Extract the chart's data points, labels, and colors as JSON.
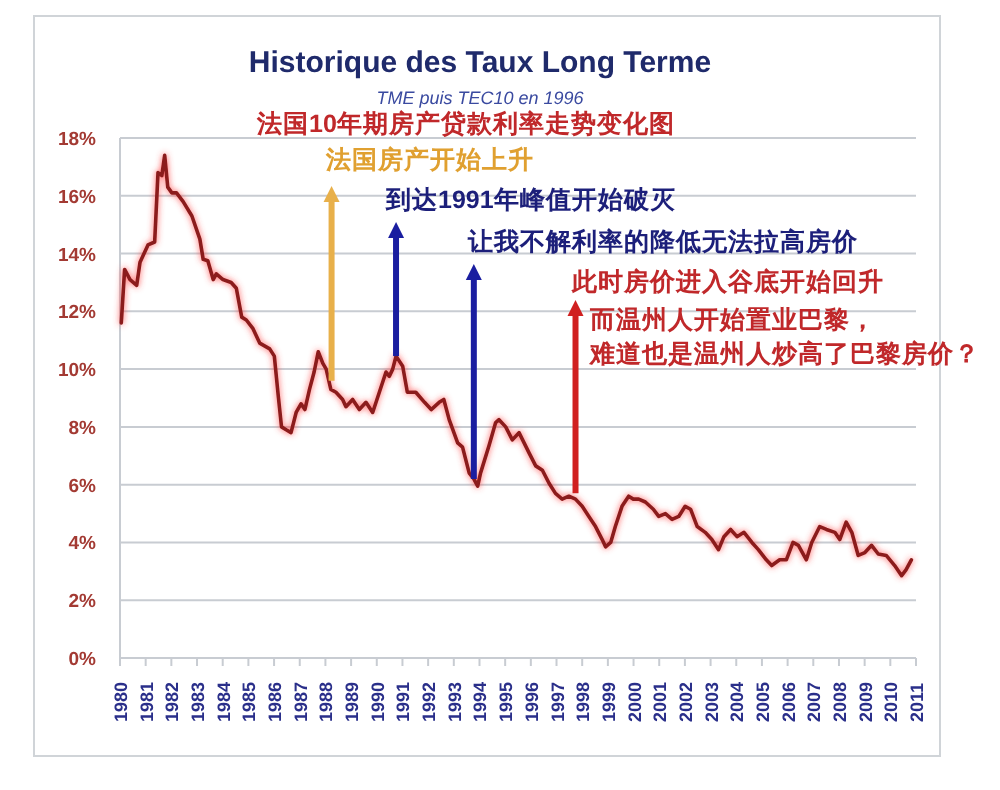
{
  "chart_data": {
    "type": "line",
    "title": "Historique des Taux Long Terme",
    "subtitle": "TME puis TEC10  en 1996",
    "annotations": [
      "法国10年期房产贷款利率走势变化图",
      {
        "text": "法国房产开始上升",
        "x": 1988.24,
        "y": 9.6
      },
      {
        "text": "到达1991年峰值开始破灭",
        "x": 1990.75,
        "y": 10.45
      },
      {
        "text": "让我不解利率的降低无法拉高房价",
        "x": 1993.78,
        "y": 6.2
      },
      {
        "text": "此时房价进入谷底开始回升",
        "x": 1997.74,
        "y": 5.7
      },
      "而温州人开始置业巴黎，",
      "难道也是温州人炒高了巴黎房价？"
    ],
    "series": [
      {
        "color": "#8b1a1a",
        "x": [
          1980.05,
          1980.18,
          1980.39,
          1980.65,
          1980.78,
          1981.09,
          1981.35,
          1981.48,
          1981.63,
          1981.74,
          1981.86,
          1982.02,
          1982.2,
          1982.46,
          1982.8,
          1983.11,
          1983.24,
          1983.42,
          1983.63,
          1983.75,
          1984.01,
          1984.33,
          1984.53,
          1984.74,
          1984.92,
          1985.18,
          1985.44,
          1985.83,
          1986.01,
          1986.16,
          1986.29,
          1986.47,
          1986.66,
          1986.86,
          1987.05,
          1987.2,
          1987.38,
          1987.56,
          1987.72,
          1987.9,
          1988.03,
          1988.21,
          1988.41,
          1988.67,
          1988.8,
          1989.06,
          1989.32,
          1989.58,
          1989.84,
          1990.1,
          1990.36,
          1990.49,
          1990.62,
          1990.75,
          1991.01,
          1991.19,
          1991.52,
          1991.86,
          1992.12,
          1992.43,
          1992.61,
          1992.82,
          1993.15,
          1993.34,
          1993.6,
          1993.78,
          1993.93,
          1994.04,
          1994.37,
          1994.63,
          1994.76,
          1995.02,
          1995.28,
          1995.54,
          1995.93,
          1996.19,
          1996.45,
          1996.71,
          1996.96,
          1997.22,
          1997.48,
          1997.74,
          1998.0,
          1998.26,
          1998.52,
          1998.78,
          1998.91,
          1999.11,
          1999.29,
          1999.55,
          1999.81,
          1999.99,
          2000.2,
          2000.46,
          2000.77,
          2000.98,
          2001.24,
          2001.5,
          2001.76,
          2002.01,
          2002.22,
          2002.48,
          2002.79,
          2003.05,
          2003.31,
          2003.52,
          2003.78,
          2004.03,
          2004.3,
          2004.61,
          2004.86,
          2005.17,
          2005.38,
          2005.69,
          2005.95,
          2006.21,
          2006.42,
          2006.73,
          2006.94,
          2007.25,
          2007.51,
          2007.84,
          2008.03,
          2008.28,
          2008.5,
          2008.75,
          2009.01,
          2009.27,
          2009.53,
          2009.84,
          2010.17,
          2010.44,
          2010.61,
          2010.82
        ],
        "values": [
          11.6,
          13.45,
          13.1,
          12.9,
          13.7,
          14.3,
          14.4,
          16.8,
          16.7,
          17.4,
          16.3,
          16.1,
          16.1,
          15.8,
          15.3,
          14.5,
          13.8,
          13.75,
          13.1,
          13.3,
          13.1,
          13.0,
          12.8,
          11.8,
          11.7,
          11.4,
          10.9,
          10.7,
          10.45,
          9.1,
          8.0,
          7.9,
          7.8,
          8.5,
          8.8,
          8.6,
          9.3,
          9.9,
          10.6,
          10.2,
          10.0,
          9.3,
          9.2,
          8.95,
          8.7,
          8.95,
          8.6,
          8.85,
          8.5,
          9.2,
          9.9,
          9.75,
          10.0,
          10.45,
          10.1,
          9.2,
          9.2,
          8.85,
          8.6,
          8.85,
          8.95,
          8.25,
          7.45,
          7.3,
          6.4,
          6.2,
          5.95,
          6.4,
          7.35,
          8.15,
          8.25,
          8.0,
          7.55,
          7.8,
          7.1,
          6.65,
          6.5,
          6.05,
          5.7,
          5.5,
          5.6,
          5.5,
          5.25,
          4.9,
          4.55,
          4.1,
          3.85,
          4.0,
          4.55,
          5.25,
          5.6,
          5.5,
          5.5,
          5.4,
          5.15,
          4.9,
          5.0,
          4.8,
          4.9,
          5.25,
          5.15,
          4.55,
          4.35,
          4.1,
          3.75,
          4.2,
          4.45,
          4.2,
          4.35,
          4.0,
          3.75,
          3.4,
          3.2,
          3.4,
          3.4,
          4.0,
          3.9,
          3.4,
          4.0,
          4.55,
          4.45,
          4.35,
          4.1,
          4.7,
          4.35,
          3.55,
          3.65,
          3.9,
          3.6,
          3.55,
          3.2,
          2.85,
          3.05,
          3.4
        ]
      }
    ],
    "xlim": [
      1980,
      2011
    ],
    "xticks": [
      1980,
      1981,
      1982,
      1983,
      1984,
      1985,
      1986,
      1987,
      1988,
      1989,
      1990,
      1991,
      1992,
      1993,
      1994,
      1995,
      1996,
      1997,
      1998,
      1999,
      2000,
      2001,
      2002,
      2003,
      2004,
      2005,
      2006,
      2007,
      2008,
      2009,
      2010,
      2011
    ],
    "ylim": [
      0,
      18
    ],
    "yticks": [
      {
        "value": 0,
        "label": "0%"
      },
      {
        "value": 2,
        "label": "2%"
      },
      {
        "value": 4,
        "label": "4%"
      },
      {
        "value": 6,
        "label": "6%"
      },
      {
        "value": 8,
        "label": "8%"
      },
      {
        "value": 10,
        "label": "10%"
      },
      {
        "value": 12,
        "label": "12%"
      },
      {
        "value": 14,
        "label": "14%"
      },
      {
        "value": 16,
        "label": "16%"
      },
      {
        "value": 18,
        "label": "18%"
      }
    ],
    "grid": "y",
    "marker": "none",
    "line_style": "solid"
  }
}
